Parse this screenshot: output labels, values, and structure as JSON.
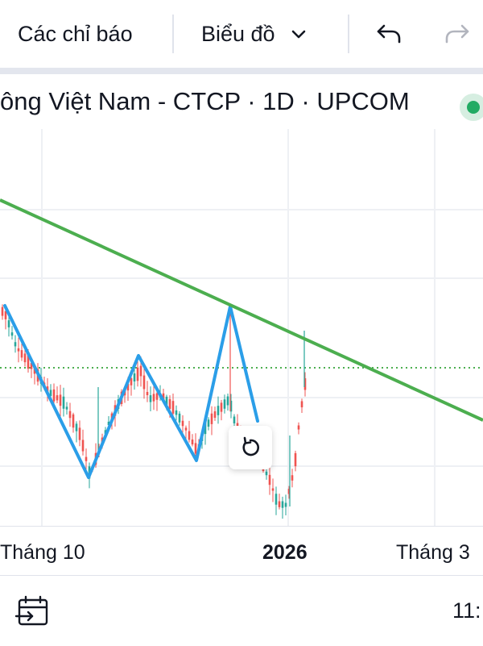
{
  "toolbar": {
    "indicators_label": "Các chỉ báo",
    "chart_type_label": "Biểu đồ",
    "icons": [
      "chevron-down-icon",
      "undo-icon",
      "redo-icon"
    ]
  },
  "symbol": {
    "title": "ông Việt Nam - CTCP · 1D · UPCOM",
    "status_color": "#22ab64"
  },
  "time_axis": {
    "labels": [
      "Tháng 10",
      "2026",
      "Tháng 3"
    ]
  },
  "bottom_bar": {
    "range_text": "11:",
    "icons": [
      "calendar-goto-icon"
    ]
  },
  "colors": {
    "up_candle": "#26a69a",
    "down_candle": "#ef5350",
    "trendline": "#4caf50",
    "pattern": "#2196f3"
  },
  "chart_data": {
    "type": "candlestick",
    "trend": "zigzag pattern with a descending resistance trendline; price drops to a low in late December 2025, then breaks above the trendline in January 2026",
    "annotations": [
      "descending trendline (green)",
      "zigzag pattern (blue)",
      "dotted horizontal level (green)"
    ]
  }
}
